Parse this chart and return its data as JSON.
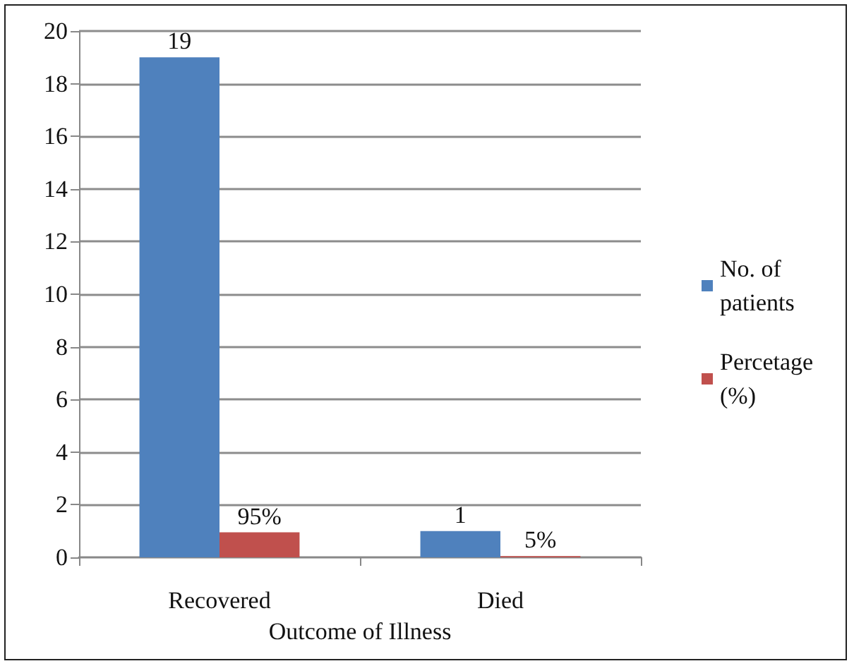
{
  "chart_data": {
    "type": "bar",
    "xlabel": "Outcome of Illness",
    "categories": [
      "Recovered",
      "Died"
    ],
    "series": [
      {
        "name": "No. of patients",
        "color": "#4f81bd",
        "values": [
          19,
          1
        ],
        "value_labels": [
          "19",
          "1"
        ]
      },
      {
        "name": "Percetage (%)",
        "color": "#c0504d",
        "values": [
          0.95,
          0.05
        ],
        "value_labels": [
          "95%",
          "5%"
        ]
      }
    ],
    "ylim": [
      0,
      20
    ],
    "yticks": [
      0,
      2,
      4,
      6,
      8,
      10,
      12,
      14,
      16,
      18,
      20
    ],
    "grid": "y",
    "legend": "right"
  }
}
